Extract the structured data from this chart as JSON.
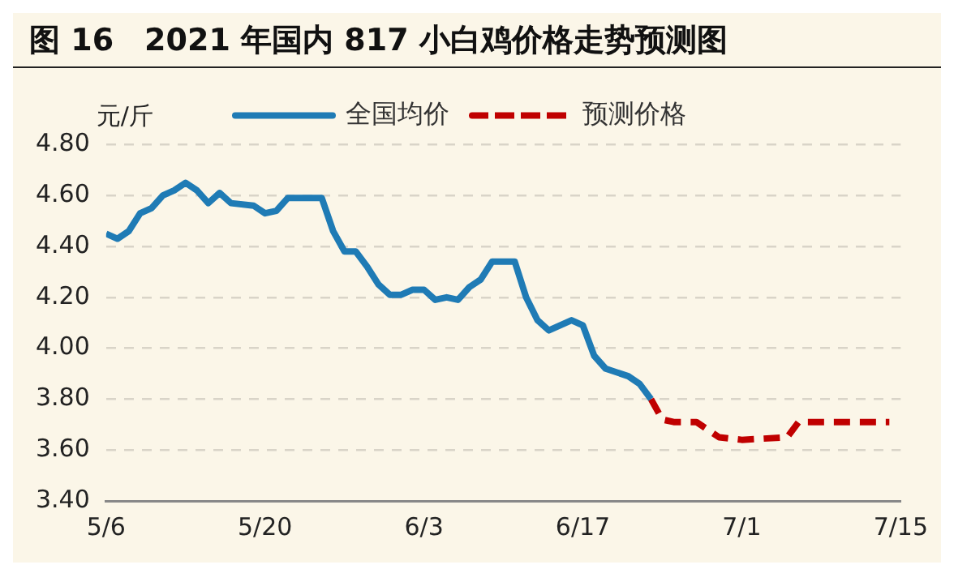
{
  "chart_data": {
    "type": "line",
    "title": "图 16　2021 年国内 817 小白鸡价格走势预测图",
    "ylabel": "元/斤",
    "legend": "top",
    "grid": "y",
    "marker": "none",
    "ylim": [
      3.4,
      4.8
    ],
    "yticks": [
      {
        "value": 3.4,
        "label": "3.40"
      },
      {
        "value": 3.6,
        "label": "3.60"
      },
      {
        "value": 3.8,
        "label": "3.80"
      },
      {
        "value": 4.0,
        "label": "4.00"
      },
      {
        "value": 4.2,
        "label": "4.20"
      },
      {
        "value": 4.4,
        "label": "4.40"
      },
      {
        "value": 4.6,
        "label": "4.60"
      },
      {
        "value": 4.8,
        "label": "4.80"
      }
    ],
    "xlim": [
      "--05-06",
      "--07-15"
    ],
    "xticks": [
      {
        "value": "--05-06",
        "label": "5/6"
      },
      {
        "value": "--05-20",
        "label": "5/20"
      },
      {
        "value": "--06-03",
        "label": "6/3"
      },
      {
        "value": "--06-17",
        "label": "6/17"
      },
      {
        "value": "--07-01",
        "label": "7/1"
      },
      {
        "value": "--07-15",
        "label": "7/15"
      }
    ],
    "series": [
      {
        "name": "全国均价",
        "color": "#1f7bb5",
        "line_style": "solid",
        "x": [
          "--05-06",
          "--05-07",
          "--05-08",
          "--05-09",
          "--05-10",
          "--05-11",
          "--05-12",
          "--05-13",
          "--05-14",
          "--05-15",
          "--05-16",
          "--05-17",
          "--05-19",
          "--05-20",
          "--05-21",
          "--05-22",
          "--05-25",
          "--05-26",
          "--05-27",
          "--05-28",
          "--05-29",
          "--05-30",
          "--05-31",
          "--06-01",
          "--06-02",
          "--06-03",
          "--06-04",
          "--06-05",
          "--06-06",
          "--06-07",
          "--06-08",
          "--06-09",
          "--06-11",
          "--06-12",
          "--06-13",
          "--06-14",
          "--06-16",
          "--06-17",
          "--06-18",
          "--06-19",
          "--06-21",
          "--06-22",
          "--06-23"
        ],
        "values": [
          4.45,
          4.43,
          4.46,
          4.53,
          4.55,
          4.6,
          4.62,
          4.65,
          4.62,
          4.57,
          4.61,
          4.57,
          4.56,
          4.53,
          4.54,
          4.59,
          4.59,
          4.46,
          4.38,
          4.38,
          4.32,
          4.25,
          4.21,
          4.21,
          4.23,
          4.23,
          4.19,
          4.2,
          4.19,
          4.24,
          4.27,
          4.34,
          4.34,
          4.2,
          4.11,
          4.07,
          4.11,
          4.09,
          3.97,
          3.92,
          3.89,
          3.86,
          3.8
        ]
      },
      {
        "name": "预测价格",
        "color": "#c00000",
        "line_style": "dashed",
        "x": [
          "--06-23",
          "--06-24",
          "--06-25",
          "--06-27",
          "--06-29",
          "--07-01",
          "--07-05",
          "--07-06",
          "--07-14"
        ],
        "values": [
          3.8,
          3.72,
          3.71,
          3.71,
          3.65,
          3.64,
          3.65,
          3.71,
          3.71
        ]
      }
    ]
  }
}
